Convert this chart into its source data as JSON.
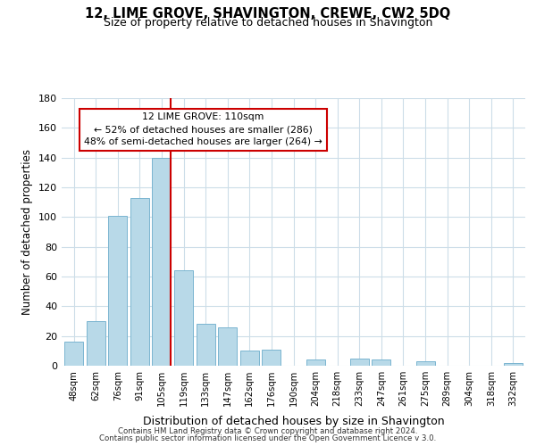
{
  "title": "12, LIME GROVE, SHAVINGTON, CREWE, CW2 5DQ",
  "subtitle": "Size of property relative to detached houses in Shavington",
  "xlabel": "Distribution of detached houses by size in Shavington",
  "ylabel": "Number of detached properties",
  "bar_labels": [
    "48sqm",
    "62sqm",
    "76sqm",
    "91sqm",
    "105sqm",
    "119sqm",
    "133sqm",
    "147sqm",
    "162sqm",
    "176sqm",
    "190sqm",
    "204sqm",
    "218sqm",
    "233sqm",
    "247sqm",
    "261sqm",
    "275sqm",
    "289sqm",
    "304sqm",
    "318sqm",
    "332sqm"
  ],
  "bar_heights": [
    16,
    30,
    101,
    113,
    140,
    64,
    28,
    26,
    10,
    11,
    0,
    4,
    0,
    5,
    4,
    0,
    3,
    0,
    0,
    0,
    2
  ],
  "bar_color": "#b8d9e8",
  "bar_edge_color": "#7ab5d0",
  "vline_x_index": 4,
  "vline_color": "#cc0000",
  "annotation_title": "12 LIME GROVE: 110sqm",
  "annotation_line1": "← 52% of detached houses are smaller (286)",
  "annotation_line2": "48% of semi-detached houses are larger (264) →",
  "annotation_box_color": "#ffffff",
  "annotation_box_edge": "#cc0000",
  "ylim": [
    0,
    180
  ],
  "yticks": [
    0,
    20,
    40,
    60,
    80,
    100,
    120,
    140,
    160,
    180
  ],
  "footer1": "Contains HM Land Registry data © Crown copyright and database right 2024.",
  "footer2": "Contains public sector information licensed under the Open Government Licence v 3.0.",
  "bg_color": "#ffffff",
  "grid_color": "#ccdde8"
}
